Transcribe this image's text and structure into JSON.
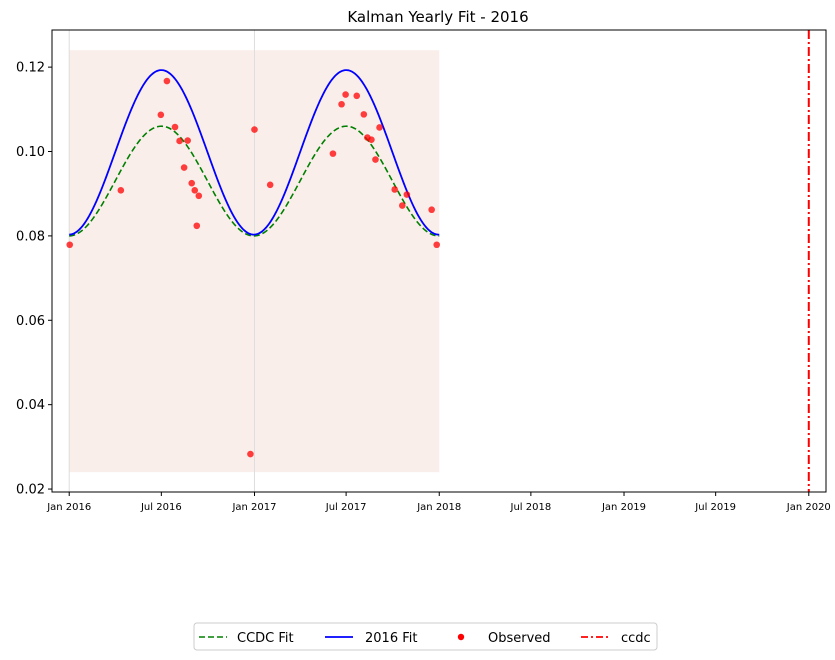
{
  "chart_data": {
    "type": "line",
    "title": "Kalman Yearly Fit - 2016",
    "xlabel": "",
    "ylabel": "",
    "x_tick_labels": [
      "Jan 2016",
      "Jul 2016",
      "Jan 2017",
      "Jul 2017",
      "Jan 2018",
      "Jul 2018",
      "Jan 2019",
      "Jul 2019",
      "Jan 2020"
    ],
    "x_ticks": [
      "2016-01-01",
      "2016-07-01",
      "2017-01-01",
      "2017-07-01",
      "2018-01-01",
      "2018-07-01",
      "2019-01-01",
      "2019-07-01",
      "2020-01-01"
    ],
    "xlim": [
      "2015-11-28",
      "2020-02-04"
    ],
    "ylim": [
      0.0193,
      0.1288
    ],
    "y_ticks": [
      0.02,
      0.04,
      0.06,
      0.08,
      0.1,
      0.12
    ],
    "y_tick_labels": [
      "0.02",
      "0.04",
      "0.06",
      "0.08",
      "0.10",
      "0.12"
    ],
    "grid": "vertical lines at Jan 2016 and Jan 2017",
    "shaded_band": {
      "x_start": "2016-01-01",
      "x_end": "2018-01-01",
      "y_low": 0.024,
      "y_high": 0.124,
      "color": "#f5ddd8"
    },
    "series": [
      {
        "name": "CCDC Fit",
        "style": "dashed",
        "color": "#008000",
        "mean": 0.093,
        "amplitude": 0.013,
        "peak_date": "2016-07-01",
        "period": "1 year",
        "x_start": "2016-01-01",
        "x_end": "2018-01-01"
      },
      {
        "name": "2016 Fit",
        "style": "solid",
        "color": "#0000ff",
        "mean": 0.0998,
        "amplitude": 0.0195,
        "peak_date": "2016-07-01",
        "period": "1 year",
        "x_start": "2016-01-01",
        "x_end": "2018-01-01"
      },
      {
        "name": "Observed",
        "style": "scatter",
        "color": "#ff0000",
        "points": [
          [
            "2016-01-02",
            0.0779
          ],
          [
            "2016-04-12",
            0.0908
          ],
          [
            "2016-06-30",
            0.1087
          ],
          [
            "2016-07-12",
            0.1167
          ],
          [
            "2016-07-28",
            0.1058
          ],
          [
            "2016-08-06",
            0.1025
          ],
          [
            "2016-08-15",
            0.0962
          ],
          [
            "2016-08-22",
            0.1026
          ],
          [
            "2016-08-30",
            0.0925
          ],
          [
            "2016-09-05",
            0.0908
          ],
          [
            "2016-09-09",
            0.0824
          ],
          [
            "2016-09-13",
            0.0895
          ],
          [
            "2016-12-24",
            0.0283
          ],
          [
            "2017-01-01",
            0.1052
          ],
          [
            "2017-02-01",
            0.0921
          ],
          [
            "2017-06-05",
            0.0995
          ],
          [
            "2017-06-22",
            0.1112
          ],
          [
            "2017-06-30",
            0.1135
          ],
          [
            "2017-07-22",
            0.1132
          ],
          [
            "2017-08-05",
            0.1088
          ],
          [
            "2017-08-12",
            0.1033
          ],
          [
            "2017-08-20",
            0.1028
          ],
          [
            "2017-08-28",
            0.0981
          ],
          [
            "2017-09-05",
            0.1057
          ],
          [
            "2017-10-05",
            0.091
          ],
          [
            "2017-10-20",
            0.0872
          ],
          [
            "2017-10-29",
            0.0898
          ],
          [
            "2017-12-17",
            0.0862
          ],
          [
            "2017-12-27",
            0.0779
          ]
        ]
      },
      {
        "name": "ccdc",
        "style": "dashdot-vertical",
        "color": "#ff0000",
        "x": "2020-01-01"
      }
    ],
    "legend": {
      "placement": "bottom-center",
      "entries": [
        "CCDC Fit",
        "2016 Fit",
        "Observed",
        "ccdc"
      ]
    }
  }
}
